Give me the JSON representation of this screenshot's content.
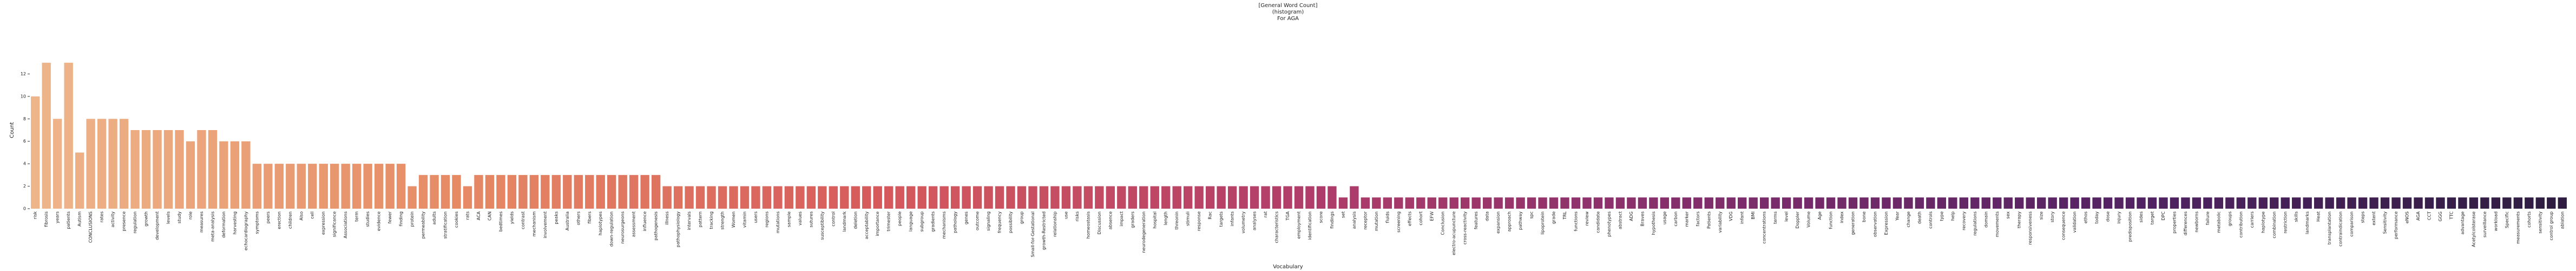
{
  "chart_data": {
    "type": "bar",
    "title": [
      "[General Word Count]",
      "(histogram)",
      "For AGA"
    ],
    "x_label": "Vocabulary",
    "y_label": "Count",
    "palette": [
      "#eeb58a",
      "#e68a64",
      "#d65a5c",
      "#b13d6a",
      "#7f2d6b",
      "#512262",
      "#2e1d40"
    ],
    "ylim": [
      0,
      14
    ],
    "yticks": [
      0,
      2,
      4,
      6,
      8,
      10,
      12
    ],
    "categories": [
      "risk",
      "fibrosis",
      "years",
      "patients",
      "Autism",
      "CONCLUSIONS",
      "rates",
      "activity",
      "presence",
      "regulation",
      "growth",
      "development",
      "levels",
      "study",
      "role",
      "measures",
      "meta-analysis",
      "deformation",
      "harvesting",
      "echocardiography",
      "symptoms",
      "peers",
      "erection",
      "children",
      "Also",
      "cell",
      "expression",
      "significance",
      "Associations",
      "term",
      "studies",
      "evidence",
      "fewer",
      "finding",
      "protein",
      "permeability",
      "adults",
      "stratification",
      "cookies",
      "rats",
      "ACA",
      "CAN",
      "bedtimes",
      "yields",
      "contrast",
      "mechanism",
      "involvement",
      "peaks",
      "Australia",
      "others",
      "fibers",
      "haplotypes",
      "down-regulation",
      "neurosurgeons",
      "assessment",
      "influence",
      "pathogenesis",
      "illness",
      "pathophysiology",
      "intervals",
      "pattern",
      "tracking",
      "strength",
      "Women",
      "vitamin",
      "users",
      "regions",
      "mutations",
      "sample",
      "values",
      "sutures",
      "susceptibility",
      "control",
      "landmark",
      "deletion",
      "acceptability",
      "importance",
      "trimester",
      "people",
      "language",
      "subgroup",
      "gradients",
      "mechanisms",
      "pathology",
      "genes",
      "outcome",
      "signaling",
      "frequency",
      "possibility",
      "group",
      "Small-for-Gestational",
      "growth-Restricted",
      "relationship",
      "use",
      "risks",
      "homeostasis",
      "Discussion",
      "absence",
      "impact",
      "graders",
      "neurodegeneration",
      "hospital",
      "length",
      "threonin",
      "stimuli",
      "response",
      "Rac",
      "targets",
      "infants",
      "volumetry",
      "analyses",
      "rat",
      "characteristics",
      "TGA",
      "employment",
      "identification",
      "score",
      "findings",
      "set",
      "analysis",
      "receptor",
      "mutation",
      "fluids",
      "screening",
      "effects",
      "cohort",
      "EFW",
      "Conclusion",
      "electro-acupuncture",
      "cross-reactivity",
      "features",
      "data",
      "expansion",
      "approach",
      "pathway",
      "spc",
      "lipoprotein",
      "grade",
      "TRL",
      "functions",
      "review",
      "candidate",
      "phenotypes",
      "abstract",
      "ADG",
      "Braves",
      "hypothesis",
      "usage",
      "carbon",
      "marker",
      "factors",
      "Patients",
      "variability",
      "VDG",
      "infant",
      "BMI",
      "concentrations",
      "terms",
      "level",
      "Doppler",
      "Volume",
      "Age",
      "function",
      "index",
      "generation",
      "bone",
      "observation",
      "Expression",
      "Year",
      "change",
      "death",
      "controls",
      "type",
      "help",
      "recovery",
      "regulations",
      "domain",
      "movements",
      "sex",
      "therapy",
      "responsiveness",
      "size",
      "story",
      "consequence",
      "validation",
      "ethos",
      "today",
      "dose",
      "injury",
      "predisposition",
      "sides",
      "target",
      "DPC",
      "properties",
      "differences",
      "newborns",
      "failure",
      "metabolic",
      "groups",
      "contribution",
      "carriers",
      "haplotype",
      "combination",
      "restriction",
      "skills",
      "landmarks",
      "Heat",
      "transplantation",
      "contraindication",
      "comparison",
      "steps",
      "extent",
      "Sensitivity",
      "performance",
      "eNOS",
      "AGA",
      "CCT",
      "GGG",
      "TTC",
      "advantage",
      "Acetylcolsterase",
      "surveillance",
      "workload",
      "Specific",
      "measurements",
      "cohorts",
      "sensitivity",
      "control group",
      "ablation"
    ],
    "values": [
      10,
      13,
      8,
      13,
      5,
      8,
      8,
      8,
      8,
      7,
      7,
      7,
      7,
      7,
      6,
      7,
      7,
      6,
      6,
      6,
      4,
      4,
      4,
      4,
      4,
      4,
      4,
      4,
      4,
      4,
      4,
      4,
      4,
      4,
      2,
      3,
      3,
      3,
      3,
      2,
      3,
      3,
      3,
      3,
      3,
      3,
      3,
      3,
      3,
      3,
      3,
      3,
      3,
      3,
      3,
      3,
      3,
      2,
      2,
      2,
      2,
      2,
      2,
      2,
      2,
      2,
      2,
      2,
      2,
      2,
      2,
      2,
      2,
      2,
      2,
      2,
      2,
      2,
      2,
      2,
      2,
      2,
      2,
      2,
      2,
      2,
      2,
      2,
      2,
      2,
      2,
      2,
      2,
      2,
      2,
      2,
      2,
      2,
      2,
      2,
      2,
      2,
      2,
      2,
      2,
      2,
      2,
      2,
      2,
      2,
      2,
      2,
      2,
      2,
      2,
      2,
      2,
      2,
      1,
      2,
      1,
      1,
      1,
      1,
      1,
      1,
      1,
      1,
      1,
      1,
      1,
      1,
      1,
      1,
      1,
      1,
      1,
      1,
      1,
      1,
      1,
      1,
      1,
      1,
      1,
      1,
      1,
      1,
      1,
      1,
      1,
      1,
      1,
      1,
      1,
      1,
      1,
      1,
      1,
      1,
      1,
      1,
      1,
      1,
      1,
      1,
      1,
      1,
      1,
      1,
      1,
      1,
      1,
      1,
      1,
      1,
      1,
      1,
      1,
      1,
      1,
      1,
      1,
      1,
      1,
      1,
      1,
      1,
      1,
      1,
      1,
      1,
      1,
      1,
      1,
      1,
      1,
      1,
      1,
      1,
      1,
      1,
      1,
      1,
      1,
      1,
      1,
      1,
      1,
      1,
      1,
      1,
      1,
      1,
      1,
      1,
      1,
      1,
      1,
      1,
      1,
      1,
      1,
      1,
      1,
      1,
      1,
      1,
      1
    ]
  }
}
